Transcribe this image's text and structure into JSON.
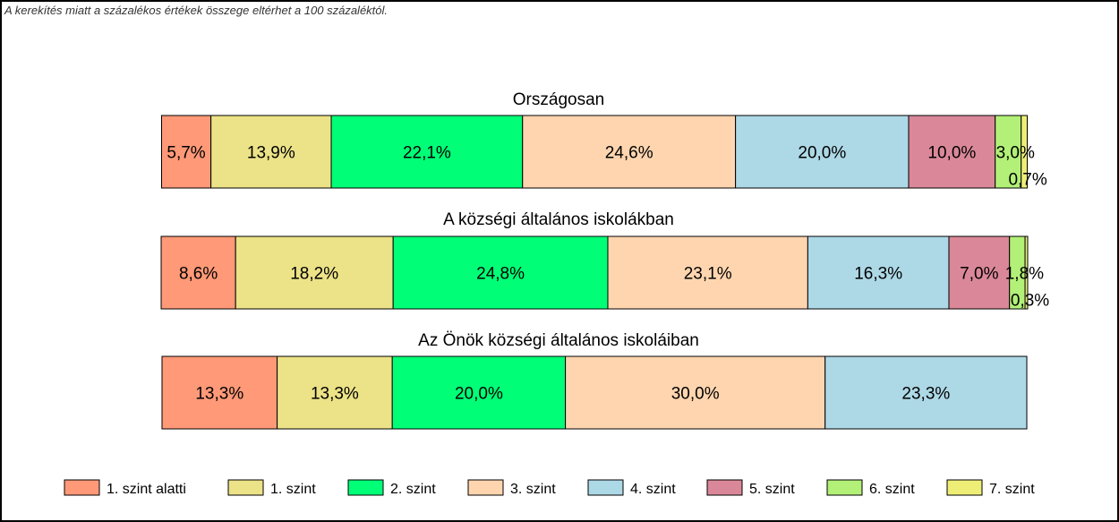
{
  "note": "A kerekítés miatt a  százalékos értékek összege eltérhet a 100 százaléktól.",
  "colors": [
    "#FF9977",
    "#ECE287",
    "#00FF77",
    "#FFD5AF",
    "#ADD8E6",
    "#DA8899",
    "#B2F078",
    "#EEEE77"
  ],
  "chart_data": {
    "type": "bar",
    "orientation": "horizontal",
    "stacked": true,
    "legend_position": "bottom",
    "legend": [
      "1. szint alatti",
      "1. szint",
      "2. szint",
      "3. szint",
      "4. szint",
      "5. szint",
      "6. szint",
      "7. szint"
    ],
    "bars": [
      {
        "title": "Országosan",
        "values": [
          5.7,
          13.9,
          22.1,
          24.6,
          20.0,
          10.0,
          3.0,
          0.7
        ],
        "labels": [
          "5,7%",
          "13,9%",
          "22,1%",
          "24,6%",
          "20,0%",
          "10,0%",
          "3,0%",
          "0,7%"
        ]
      },
      {
        "title": "A községi általános iskolákban",
        "values": [
          8.6,
          18.2,
          24.8,
          23.1,
          16.3,
          7.0,
          1.8,
          0.3
        ],
        "labels": [
          "8,6%",
          "18,2%",
          "24,8%",
          "23,1%",
          "16,3%",
          "7,0%",
          "1,8%",
          "0,3%"
        ]
      },
      {
        "title": "Az Önök községi általános iskoláiban",
        "values": [
          13.3,
          13.3,
          20.0,
          30.0,
          23.3
        ],
        "labels": [
          "13,3%",
          "13,3%",
          "20,0%",
          "30,0%",
          "23,3%"
        ]
      }
    ]
  }
}
